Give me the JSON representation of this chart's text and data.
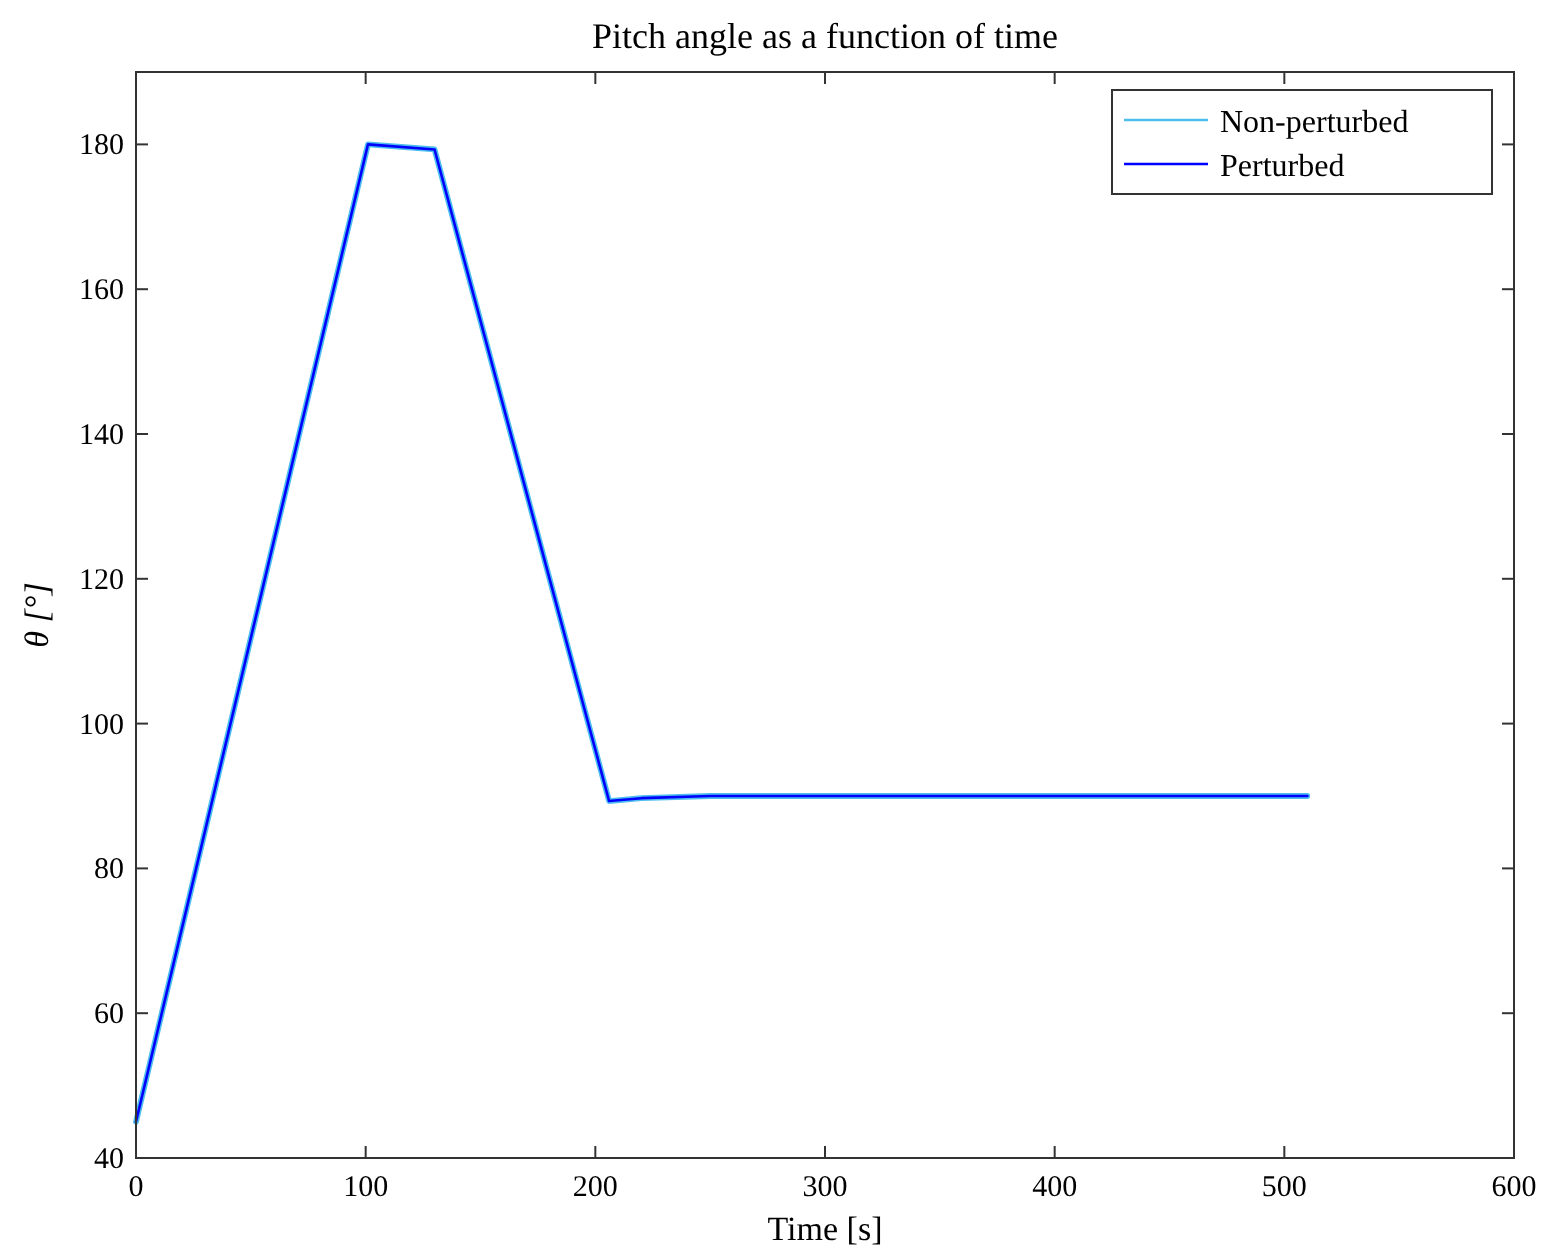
{
  "chart_data": {
    "type": "line",
    "title": "Pitch angle as a function of time",
    "xlabel": "Time [s]",
    "ylabel": "θ [°]",
    "xlim": [
      0,
      600
    ],
    "xticks": [
      0,
      100,
      200,
      300,
      400,
      500,
      600
    ],
    "ylim": [
      40,
      190
    ],
    "yticks": [
      40,
      60,
      80,
      100,
      120,
      140,
      160,
      180
    ],
    "grid": false,
    "legend": "top right",
    "marker": "none",
    "line_style": "solid",
    "series": [
      {
        "name": "Non-perturbed",
        "color": "#4dbeee",
        "x": [
          0,
          101,
          130,
          206,
          220,
          250,
          300,
          510
        ],
        "values": [
          45,
          180,
          179.3,
          89.3,
          89.7,
          90,
          90,
          90
        ]
      },
      {
        "name": "Perturbed",
        "color": "#0000ff",
        "x": [
          0,
          101,
          130,
          206,
          220,
          250,
          300,
          510
        ],
        "values": [
          45,
          180,
          179.3,
          89.3,
          89.7,
          90,
          90,
          90
        ]
      }
    ]
  }
}
